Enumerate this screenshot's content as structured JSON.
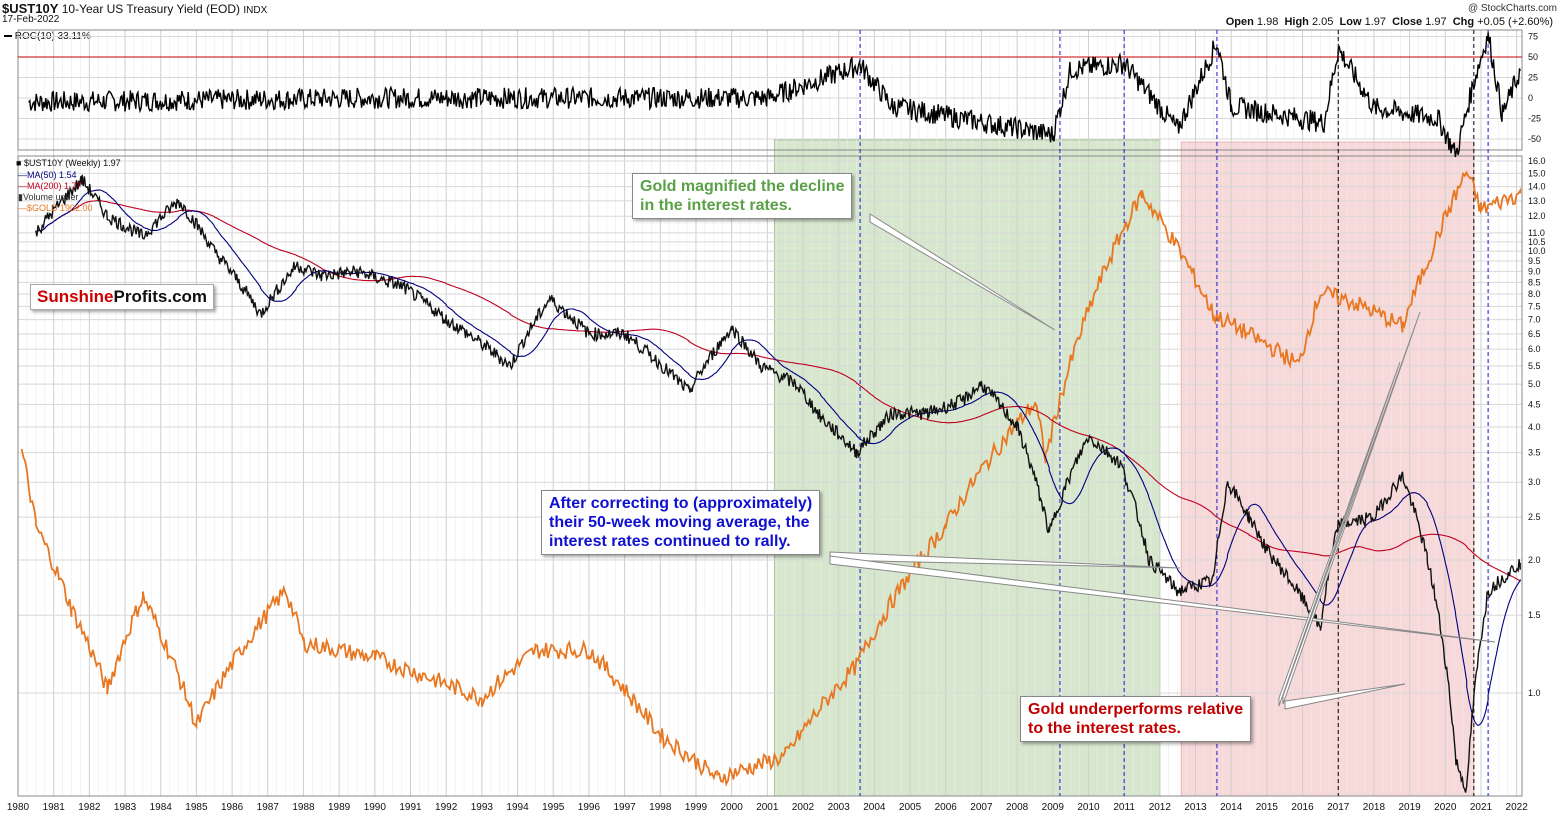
{
  "header": {
    "symbol": "$UST10Y",
    "description": "10-Year US Treasury Yield (EOD)",
    "exchange": "INDX",
    "date": "17-Feb-2022",
    "brand": "@ StockCharts.com",
    "ohlc": {
      "open_label": "Open",
      "open": "1.98",
      "high_label": "High",
      "high": "2.05",
      "low_label": "Low",
      "low": "1.97",
      "close_label": "Close",
      "close": "1.97",
      "chg_label": "Chg",
      "chg": "+0.05 (+2.60%)"
    }
  },
  "roc_panel": {
    "legend": "ROC(10) 33.11%",
    "ticks": [
      "75",
      "50",
      "25",
      "0",
      "-25",
      "-50"
    ],
    "colors": {
      "line": "#000000",
      "threshold": "#cc0000"
    }
  },
  "legend": {
    "ust": "$UST10Y (Weekly) 1.97",
    "ma50": "MA(50) 1.54",
    "ma200": "MA(200) 1.77",
    "volume": "Volume under",
    "gold": "$GOLD 1902.00"
  },
  "logo": {
    "part1": "Sunshine",
    "part2": "Profits.com",
    "color1": "#cc0000"
  },
  "callouts": {
    "green": {
      "line1": "Gold magnified the decline",
      "line2": "in the interest rates."
    },
    "blue": {
      "line1": "After correcting to (approximately)",
      "line2": "their 50-week moving average, the",
      "line3": "interest rates continued to rally."
    },
    "red": {
      "line1": "Gold underperforms relative",
      "line2": "to the interest rates."
    }
  },
  "colors": {
    "gold_line": "#e87722",
    "ma50": "#000080",
    "ma200": "#c00020",
    "green_zone": "#cfe3c6",
    "red_zone": "#f6d3d3",
    "green_text": "#5aa046",
    "blue_text": "#1010d0",
    "red_text": "#c00000"
  },
  "chart_data": {
    "type": "line",
    "title": "$UST10Y 10-Year US Treasury Yield (EOD)",
    "x_ticks": [
      "1980",
      "1981",
      "1982",
      "1983",
      "1984",
      "1985",
      "1986",
      "1987",
      "1988",
      "1989",
      "1990",
      "1991",
      "1992",
      "1993",
      "1994",
      "1995",
      "1996",
      "1997",
      "1998",
      "1999",
      "2000",
      "2001",
      "2002",
      "2003",
      "2004",
      "2005",
      "2006",
      "2007",
      "2008",
      "2009",
      "2010",
      "2011",
      "2012",
      "2013",
      "2014",
      "2015",
      "2016",
      "2017",
      "2018",
      "2019",
      "2020",
      "2021",
      "2022"
    ],
    "y_scale": "log",
    "y_ticks": [
      "16.0",
      "15.0",
      "14.0",
      "13.0",
      "12.0",
      "11.0",
      "10.5",
      "10.0",
      "9.5",
      "9.0",
      "8.5",
      "8.0",
      "7.5",
      "7.0",
      "6.5",
      "6.0",
      "5.5",
      "5.0",
      "4.5",
      "4.0",
      "3.5",
      "3.0",
      "2.5",
      "2.0",
      "1.5",
      "1.0"
    ],
    "grid": true,
    "ust10y": {
      "x": [
        1980.5,
        1981.8,
        1982.5,
        1983.5,
        1984.5,
        1985.5,
        1986.8,
        1987.8,
        1988.5,
        1989.5,
        1990.8,
        1992,
        1993.8,
        1994.9,
        1996,
        1997,
        1998.8,
        2000,
        2000.8,
        2001.8,
        2002.5,
        2003.5,
        2004.5,
        2005.5,
        2006.5,
        2007,
        2008,
        2008.9,
        2010,
        2010.9,
        2011.7,
        2012.5,
        2013.5,
        2013.9,
        2014.5,
        2015,
        2016.5,
        2017,
        2018,
        2018.8,
        2019.5,
        2020.3,
        2020.6,
        2021.2,
        2022.1
      ],
      "y": [
        11.0,
        14.5,
        12.0,
        10.8,
        13.0,
        10.0,
        7.2,
        9.3,
        8.8,
        9.0,
        8.3,
        7.0,
        5.5,
        7.8,
        6.5,
        6.5,
        4.8,
        6.7,
        5.5,
        5.0,
        4.2,
        3.5,
        4.3,
        4.3,
        4.6,
        5.0,
        4.0,
        2.3,
        3.8,
        3.3,
        2.0,
        1.7,
        1.8,
        3.0,
        2.5,
        2.1,
        1.4,
        2.4,
        2.5,
        3.1,
        2.0,
        0.7,
        0.6,
        1.7,
        1.97
      ]
    },
    "roc10": {
      "x": [
        1980.3,
        1990,
        2001,
        2003.6,
        2004.5,
        2009,
        2009.5,
        2011,
        2012.5,
        2013.6,
        2014,
        2016.6,
        2017,
        2018,
        2019.8,
        2020.3,
        2020.8,
        2021.2,
        2021.6,
        2022.1
      ],
      "y": [
        -5,
        0,
        0,
        40,
        -10,
        -45,
        35,
        42,
        -38,
        68,
        -10,
        -30,
        60,
        -12,
        -25,
        -70,
        20,
        78,
        -20,
        33
      ]
    },
    "gold": {
      "x": [
        1980.1,
        1980.5,
        1981.5,
        1982.5,
        1983.5,
        1985,
        1987.5,
        1988,
        1990,
        1993,
        1994.5,
        1996,
        1998,
        1999.6,
        2001.5,
        2003.5,
        2006,
        2008.5,
        2008.8,
        2011.5,
        2013.5,
        2015.9,
        2016.5,
        2017.5,
        2018.8,
        2019.5,
        2020.6,
        2021,
        2022.1
      ],
      "y": [
        780,
        600,
        450,
        340,
        470,
        300,
        480,
        400,
        380,
        330,
        390,
        390,
        290,
        250,
        270,
        370,
        600,
        920,
        760,
        1900,
        1250,
        1050,
        1350,
        1300,
        1200,
        1500,
        2050,
        1800,
        1902
      ]
    },
    "regions": [
      {
        "label": "green",
        "x": [
          2001.2,
          2012.0
        ]
      },
      {
        "label": "red",
        "x": [
          2012.6,
          2020.8
        ]
      }
    ],
    "vlines_blue": [
      2003.6,
      2009.2,
      2011.0,
      2013.6,
      2021.2
    ],
    "vlines_black": [
      2017.0,
      2020.8
    ],
    "threshold_roc": 50
  }
}
